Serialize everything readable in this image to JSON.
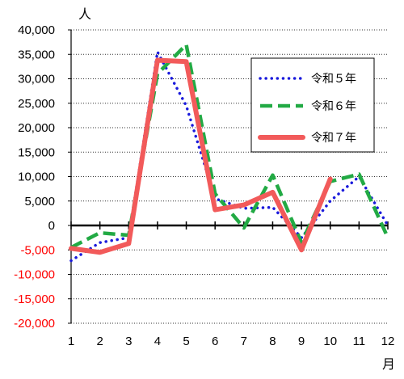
{
  "chart_data": {
    "type": "line",
    "title": "",
    "ylabel": "人",
    "xlabel": "月",
    "ylim": [
      -20000,
      40000
    ],
    "ytick_step": 5000,
    "y_ticks": [
      "40,000",
      "35,000",
      "30,000",
      "25,000",
      "20,000",
      "15,000",
      "10,000",
      "5,000",
      "0",
      "-5,000",
      "-10,000",
      "-15,000",
      "-20,000"
    ],
    "x": [
      1,
      2,
      3,
      4,
      5,
      6,
      7,
      8,
      9,
      10,
      11,
      12
    ],
    "x_ticks": [
      "1",
      "2",
      "3",
      "4",
      "5",
      "6",
      "7",
      "8",
      "9",
      "10",
      "11",
      "12"
    ],
    "grid": "horizontal dotted",
    "legend_position": "right",
    "negative_tick_color": "#ff0000",
    "series": [
      {
        "name": "令和５年",
        "color": "#1a1adc",
        "style": "dotted",
        "values": [
          -7200,
          -3500,
          -2500,
          35500,
          24500,
          5500,
          3500,
          3700,
          -2500,
          5000,
          10000,
          0
        ]
      },
      {
        "name": "令和６年",
        "color": "#22aa44",
        "style": "dashed",
        "values": [
          -4500,
          -1500,
          -2000,
          31000,
          37000,
          6500,
          -500,
          10300,
          -3500,
          9000,
          10500,
          -2500
        ]
      },
      {
        "name": "令和７年",
        "color": "#f25a5a",
        "style": "solid",
        "values": [
          -4700,
          -5500,
          -3700,
          33800,
          33500,
          3200,
          4200,
          6800,
          -5000,
          9500,
          null,
          null
        ]
      }
    ]
  }
}
